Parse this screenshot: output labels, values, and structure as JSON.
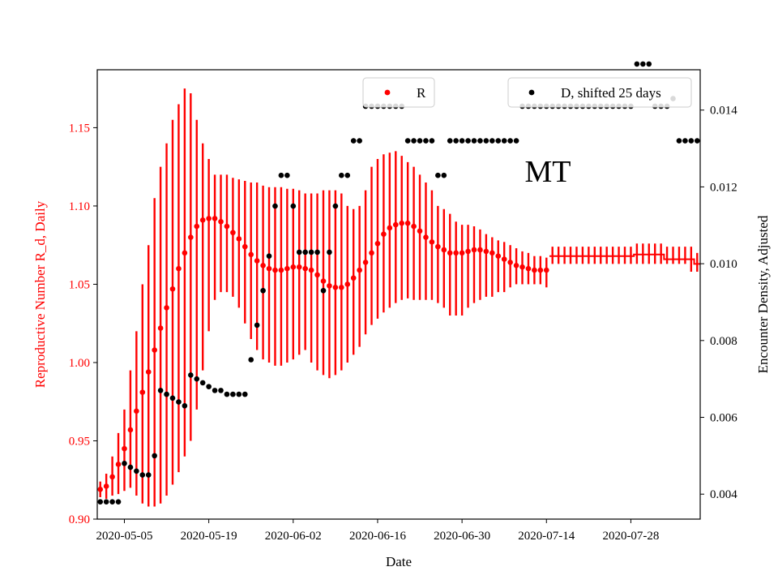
{
  "chart_data": {
    "type": "scatter",
    "annotation": "MT",
    "xlabel": "Date",
    "ylabel_left": "Reproductive Number R_d, Daily",
    "ylabel_right": "Encounter Density, Adjusted",
    "left_axis_color": "#ff0000",
    "series_colors": {
      "R": "#ff0000",
      "D": "#000000"
    },
    "x_ticks": [
      "2020-05-05",
      "2020-05-19",
      "2020-06-02",
      "2020-06-16",
      "2020-06-30",
      "2020-07-14",
      "2020-07-28"
    ],
    "x_tick_day": [
      4,
      18,
      32,
      46,
      60,
      74,
      88
    ],
    "xlim_day": [
      -0.5,
      99.5
    ],
    "y_left_ticks": [
      "0.90",
      "0.95",
      "1.00",
      "1.05",
      "1.10",
      "1.15"
    ],
    "y_left_tick_values": [
      0.9,
      0.95,
      1.0,
      1.05,
      1.1,
      1.15
    ],
    "ylim_left": [
      0.9,
      1.187
    ],
    "y_right_ticks": [
      "0.004",
      "0.006",
      "0.008",
      "0.010",
      "0.012",
      "0.014"
    ],
    "y_right_tick_values": [
      0.004,
      0.006,
      0.008,
      0.01,
      0.012,
      0.014
    ],
    "ylim_right": [
      0.00335,
      0.01505
    ],
    "legend": {
      "R": "R",
      "D": "D, shifted 25 days"
    },
    "R": {
      "day": [
        0,
        1,
        2,
        3,
        4,
        5,
        6,
        7,
        8,
        9,
        10,
        11,
        12,
        13,
        14,
        15,
        16,
        17,
        18,
        19,
        20,
        21,
        22,
        23,
        24,
        25,
        26,
        27,
        28,
        29,
        30,
        31,
        32,
        33,
        34,
        35,
        36,
        37,
        38,
        39,
        40,
        41,
        42,
        43,
        44,
        45,
        46,
        47,
        48,
        49,
        50,
        51,
        52,
        53,
        54,
        55,
        56,
        57,
        58,
        59,
        60,
        61,
        62,
        63,
        64,
        65,
        66,
        67,
        68,
        69,
        70,
        71,
        72,
        73,
        74
      ],
      "value": [
        0.919,
        0.921,
        0.927,
        0.935,
        0.945,
        0.957,
        0.969,
        0.981,
        0.994,
        1.008,
        1.022,
        1.035,
        1.047,
        1.06,
        1.07,
        1.08,
        1.087,
        1.091,
        1.092,
        1.092,
        1.09,
        1.087,
        1.083,
        1.079,
        1.074,
        1.069,
        1.065,
        1.062,
        1.06,
        1.059,
        1.059,
        1.06,
        1.061,
        1.061,
        1.06,
        1.059,
        1.056,
        1.052,
        1.049,
        1.048,
        1.048,
        1.05,
        1.054,
        1.059,
        1.064,
        1.07,
        1.076,
        1.082,
        1.086,
        1.088,
        1.089,
        1.089,
        1.087,
        1.084,
        1.08,
        1.077,
        1.074,
        1.072,
        1.07,
        1.07,
        1.07,
        1.071,
        1.072,
        1.072,
        1.071,
        1.07,
        1.068,
        1.066,
        1.064,
        1.062,
        1.061,
        1.06,
        1.059,
        1.059,
        1.059
      ],
      "lower": [
        0.914,
        0.913,
        0.915,
        0.916,
        0.918,
        0.92,
        0.915,
        0.91,
        0.908,
        0.908,
        0.91,
        0.915,
        0.922,
        0.93,
        0.94,
        0.95,
        0.97,
        0.995,
        1.02,
        1.04,
        1.045,
        1.045,
        1.042,
        1.035,
        1.025,
        1.015,
        1.008,
        1.002,
        1.0,
        0.998,
        0.998,
        1.0,
        1.002,
        1.005,
        1.008,
        1.0,
        0.995,
        0.992,
        0.99,
        0.992,
        0.995,
        1.0,
        1.005,
        1.01,
        1.018,
        1.024,
        1.028,
        1.032,
        1.035,
        1.038,
        1.04,
        1.041,
        1.04,
        1.04,
        1.04,
        1.04,
        1.038,
        1.035,
        1.03,
        1.03,
        1.03,
        1.035,
        1.038,
        1.04,
        1.042,
        1.042,
        1.045,
        1.045,
        1.048,
        1.05,
        1.05,
        1.05,
        1.05,
        1.05,
        1.048
      ],
      "upper": [
        0.924,
        0.929,
        0.94,
        0.955,
        0.97,
        0.995,
        1.02,
        1.05,
        1.075,
        1.105,
        1.125,
        1.14,
        1.155,
        1.165,
        1.175,
        1.172,
        1.155,
        1.14,
        1.13,
        1.12,
        1.12,
        1.12,
        1.118,
        1.117,
        1.116,
        1.115,
        1.115,
        1.113,
        1.112,
        1.112,
        1.112,
        1.111,
        1.111,
        1.11,
        1.108,
        1.108,
        1.108,
        1.11,
        1.11,
        1.11,
        1.108,
        1.1,
        1.098,
        1.1,
        1.11,
        1.125,
        1.13,
        1.133,
        1.134,
        1.135,
        1.132,
        1.128,
        1.125,
        1.12,
        1.115,
        1.11,
        1.1,
        1.098,
        1.095,
        1.09,
        1.088,
        1.088,
        1.087,
        1.085,
        1.082,
        1.08,
        1.078,
        1.077,
        1.075,
        1.073,
        1.071,
        1.07,
        1.068,
        1.068,
        1.067
      ]
    },
    "R_flat": {
      "day": [
        75,
        76,
        77,
        78,
        79,
        80,
        81,
        82,
        83,
        84,
        85,
        86,
        87,
        88,
        89,
        90,
        91,
        92,
        93,
        94,
        95,
        96,
        97,
        98,
        99
      ],
      "value": [
        1.068,
        1.068,
        1.068,
        1.068,
        1.068,
        1.068,
        1.068,
        1.068,
        1.068,
        1.068,
        1.068,
        1.068,
        1.068,
        1.068,
        1.069,
        1.069,
        1.069,
        1.069,
        1.069,
        1.066,
        1.066,
        1.066,
        1.066,
        1.066,
        1.063
      ],
      "lower": [
        1.063,
        1.063,
        1.063,
        1.063,
        1.063,
        1.063,
        1.063,
        1.063,
        1.063,
        1.063,
        1.063,
        1.063,
        1.063,
        1.063,
        1.063,
        1.063,
        1.063,
        1.063,
        1.063,
        1.063,
        1.063,
        1.063,
        1.063,
        1.058,
        1.058
      ],
      "upper": [
        1.074,
        1.074,
        1.074,
        1.074,
        1.074,
        1.074,
        1.074,
        1.074,
        1.074,
        1.074,
        1.074,
        1.074,
        1.074,
        1.074,
        1.076,
        1.076,
        1.076,
        1.076,
        1.076,
        1.074,
        1.074,
        1.074,
        1.074,
        1.074,
        1.07
      ]
    },
    "D": {
      "day": [
        0,
        1,
        2,
        3,
        4,
        5,
        6,
        7,
        8,
        9,
        10,
        11,
        12,
        13,
        14,
        15,
        16,
        17,
        18,
        19,
        20,
        21,
        22,
        23,
        24,
        25,
        26,
        27,
        28,
        29,
        30,
        31,
        32,
        33,
        34,
        35,
        36,
        37,
        38,
        39,
        40,
        41,
        42,
        43,
        44,
        45,
        46,
        47,
        48,
        49,
        50,
        51,
        52,
        53,
        54,
        55,
        56,
        57,
        58,
        59,
        60,
        61,
        62,
        63,
        64,
        65,
        66,
        67,
        68,
        69,
        70,
        71,
        72,
        73,
        74,
        75,
        76,
        77,
        78,
        79,
        80,
        81,
        82,
        83,
        84,
        85,
        86,
        87,
        88,
        89,
        90,
        91,
        92,
        93,
        94,
        95,
        96,
        97,
        98,
        99
      ],
      "value": [
        0.0038,
        0.0038,
        0.0038,
        0.0038,
        0.0048,
        0.0047,
        0.0046,
        0.0045,
        0.0045,
        0.005,
        0.0067,
        0.0066,
        0.0065,
        0.0064,
        0.0063,
        0.0071,
        0.007,
        0.0069,
        0.0068,
        0.0067,
        0.0067,
        0.0066,
        0.0066,
        0.0066,
        0.0066,
        0.0075,
        0.0084,
        0.0093,
        0.0102,
        0.0115,
        0.0123,
        0.0123,
        0.0115,
        0.0103,
        0.0103,
        0.0103,
        0.0103,
        0.0093,
        0.0103,
        0.0115,
        0.0123,
        0.0123,
        0.0132,
        0.0132,
        0.0141,
        0.0141,
        0.0141,
        0.0141,
        0.0141,
        0.0141,
        0.0141,
        0.0132,
        0.0132,
        0.0132,
        0.0132,
        0.0132,
        0.0123,
        0.0123,
        0.0132,
        0.0132,
        0.0132,
        0.0132,
        0.0132,
        0.0132,
        0.0132,
        0.0132,
        0.0132,
        0.0132,
        0.0132,
        0.0132,
        0.0141,
        0.0141,
        0.0141,
        0.0141,
        0.0141,
        0.0141,
        0.0141,
        0.0141,
        0.0141,
        0.0141,
        0.0141,
        0.0141,
        0.0141,
        0.0141,
        0.0141,
        0.0141,
        0.0141,
        0.0141,
        0.0141,
        0.0152,
        0.0152,
        0.0152,
        0.0141,
        0.0141,
        0.0141,
        0.0143,
        0.0132,
        0.0132,
        0.0132,
        0.0132
      ]
    }
  }
}
